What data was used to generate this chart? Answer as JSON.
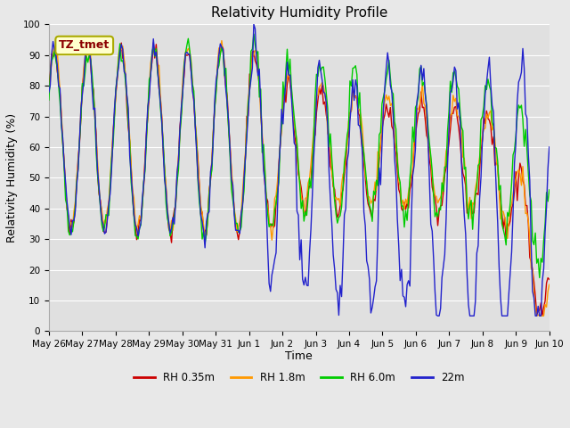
{
  "title": "Relativity Humidity Profile",
  "ylabel": "Relativity Humidity (%)",
  "xlabel": "Time",
  "annotation": "TZ_tmet",
  "ylim": [
    0,
    100
  ],
  "xlim": [
    0,
    15
  ],
  "xtick_labels": [
    "May 26",
    "May 27",
    "May 28",
    "May 29",
    "May 30",
    "May 31",
    "Jun 1",
    "Jun 2",
    "Jun 3",
    "Jun 4",
    "Jun 5",
    "Jun 6",
    "Jun 7",
    "Jun 8",
    "Jun 9",
    "Jun 10"
  ],
  "legend_labels": [
    "RH 0.35m",
    "RH 1.8m",
    "RH 6.0m",
    "22m"
  ],
  "line_colors": [
    "#cc0000",
    "#ff9900",
    "#00cc00",
    "#2222cc"
  ],
  "fig_facecolor": "#e8e8e8",
  "ax_facecolor": "#e0e0e0",
  "grid_color": "#ffffff",
  "title_fontsize": 11,
  "tick_fontsize": 7.5,
  "label_fontsize": 9,
  "annotation_fontsize": 9,
  "annotation_color": "#8b0000",
  "annotation_bg": "#ffffcc",
  "annotation_edge": "#aaaa00"
}
